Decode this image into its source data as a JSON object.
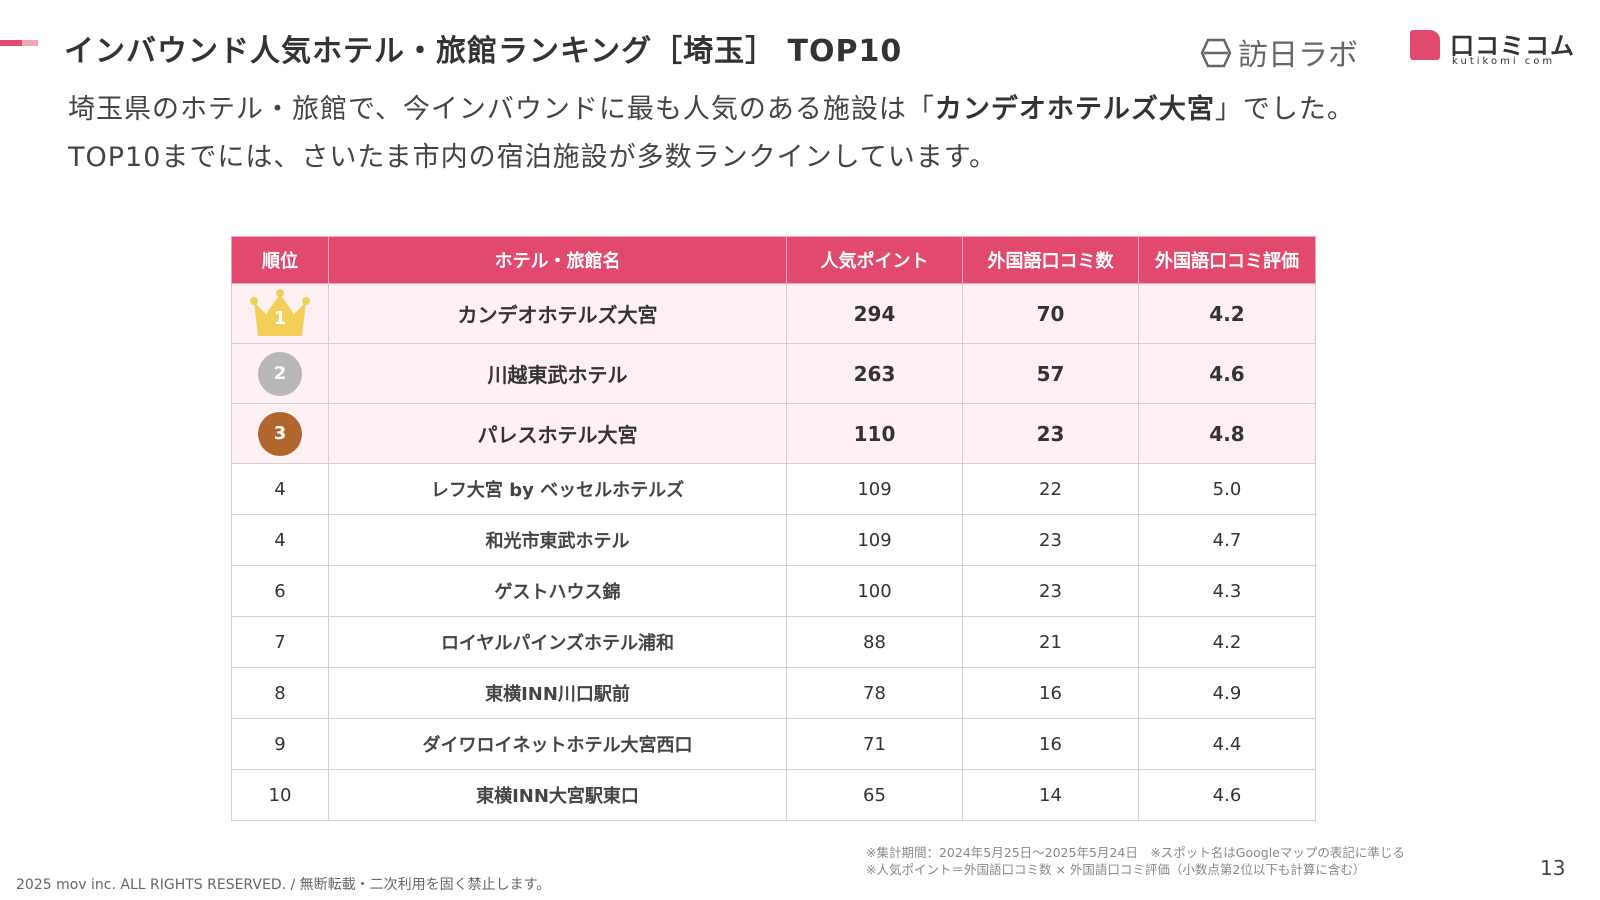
{
  "colors": {
    "accent": "#e14a6e",
    "accent_light": "#fff0f3",
    "gold": "#f3cf58",
    "silver": "#b7b7b7",
    "bronze": "#b0662d"
  },
  "title": "インバウンド人気ホテル・旅館ランキング［埼玉］ TOP10",
  "logos": {
    "houjin": "訪日ラボ",
    "kuchikomi": "口コミコム",
    "kuchikomi_sub": "kutikomi com"
  },
  "description": {
    "line1_pre": "埼玉県のホテル・旅館で、今インバウンドに最も人気のある施設は「",
    "line1_bold": "カンデオホテルズ大宮",
    "line1_post": "」でした。",
    "line2": "TOP10までには、さいたま市内の宿泊施設が多数ランクインしています。"
  },
  "table": {
    "headers": [
      "順位",
      "ホテル・旅館名",
      "人気ポイント",
      "外国語口コミ数",
      "外国語口コミ評価"
    ],
    "rows": [
      {
        "rank": "1",
        "name": "カンデオホテルズ大宮",
        "points": "294",
        "reviews": "70",
        "rating": "4.2"
      },
      {
        "rank": "2",
        "name": "川越東武ホテル",
        "points": "263",
        "reviews": "57",
        "rating": "4.6"
      },
      {
        "rank": "3",
        "name": "パレスホテル大宮",
        "points": "110",
        "reviews": "23",
        "rating": "4.8"
      },
      {
        "rank": "4",
        "name": "レフ大宮 by ベッセルホテルズ",
        "points": "109",
        "reviews": "22",
        "rating": "5.0"
      },
      {
        "rank": "4",
        "name": "和光市東武ホテル",
        "points": "109",
        "reviews": "23",
        "rating": "4.7"
      },
      {
        "rank": "6",
        "name": "ゲストハウス錦",
        "points": "100",
        "reviews": "23",
        "rating": "4.3"
      },
      {
        "rank": "7",
        "name": "ロイヤルパインズホテル浦和",
        "points": "88",
        "reviews": "21",
        "rating": "4.2"
      },
      {
        "rank": "8",
        "name": "東横INN川口駅前",
        "points": "78",
        "reviews": "16",
        "rating": "4.9"
      },
      {
        "rank": "9",
        "name": "ダイワロイネットホテル大宮西口",
        "points": "71",
        "reviews": "16",
        "rating": "4.4"
      },
      {
        "rank": "10",
        "name": "東横INN大宮駅東口",
        "points": "65",
        "reviews": "14",
        "rating": "4.6"
      }
    ]
  },
  "notes": {
    "line1": "※集計期間：2024年5月25日〜2025年5月24日　※スポット名はGoogleマップの表記に準じる",
    "line2": "※人気ポイント＝外国語口コミ数 × 外国語口コミ評価（小数点第2位以下も計算に含む）"
  },
  "footer": "2025 mov inc. ALL RIGHTS RESERVED. / 無断転載・二次利用を固く禁止します。",
  "page_number": "13"
}
